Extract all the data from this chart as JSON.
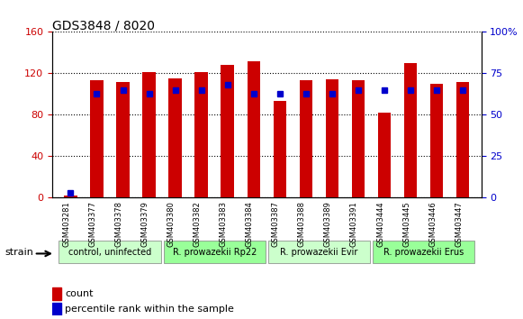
{
  "title": "GDS3848 / 8020",
  "samples": [
    "GSM403281",
    "GSM403377",
    "GSM403378",
    "GSM403379",
    "GSM403380",
    "GSM403382",
    "GSM403383",
    "GSM403384",
    "GSM403387",
    "GSM403388",
    "GSM403389",
    "GSM403391",
    "GSM403444",
    "GSM403445",
    "GSM403446",
    "GSM403447"
  ],
  "count_values": [
    2,
    113,
    112,
    121,
    115,
    121,
    128,
    132,
    93,
    113,
    114,
    113,
    82,
    130,
    110,
    112
  ],
  "percentile_values": [
    3,
    63,
    65,
    63,
    65,
    65,
    68,
    63,
    63,
    63,
    63,
    65,
    65,
    65,
    65,
    65
  ],
  "bar_color": "#cc0000",
  "dot_color": "#0000cc",
  "ylim_left": [
    0,
    160
  ],
  "ylim_right": [
    0,
    100
  ],
  "yticks_left": [
    0,
    40,
    80,
    120,
    160
  ],
  "yticks_right": [
    0,
    25,
    50,
    75,
    100
  ],
  "groups": [
    {
      "label": "control, uninfected",
      "start": 0,
      "end": 3,
      "color": "#ccffcc"
    },
    {
      "label": "R. prowazekii Rp22",
      "start": 4,
      "end": 7,
      "color": "#99ff99"
    },
    {
      "label": "R. prowazekii Evir",
      "start": 8,
      "end": 11,
      "color": "#ccffcc"
    },
    {
      "label": "R. prowazekii Erus",
      "start": 12,
      "end": 15,
      "color": "#99ff99"
    }
  ],
  "strain_label": "strain",
  "legend_count_label": "count",
  "legend_pct_label": "percentile rank within the sample",
  "bg_color": "#ffffff",
  "tick_label_color_left": "#cc0000",
  "tick_label_color_right": "#0000cc",
  "bar_width": 0.5
}
